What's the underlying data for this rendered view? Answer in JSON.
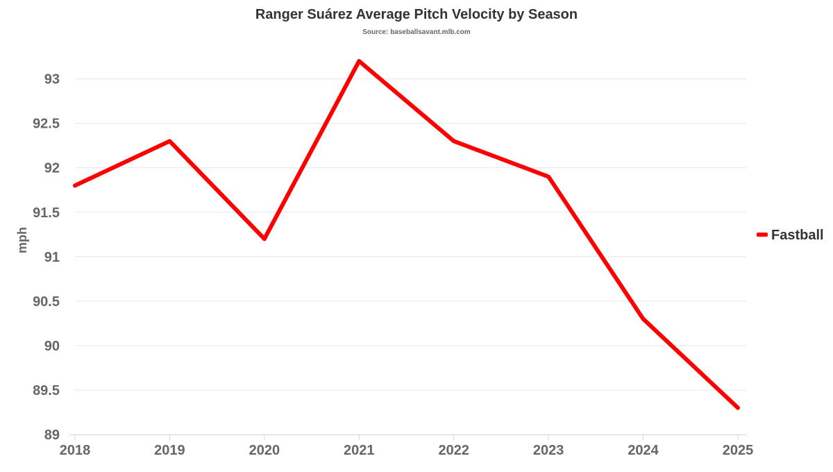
{
  "chart_data": {
    "type": "line",
    "title": "Ranger Suárez Average Pitch Velocity by Season",
    "subtitle": "Source: baseballsavant.mlb.com",
    "xlabel": "",
    "ylabel": "mph",
    "categories": [
      "2018",
      "2019",
      "2020",
      "2021",
      "2022",
      "2023",
      "2024",
      "2025"
    ],
    "series": [
      {
        "name": "Fastball",
        "color": "#ff0000",
        "values": [
          91.8,
          92.3,
          91.2,
          93.2,
          92.3,
          91.9,
          90.3,
          89.3
        ]
      }
    ],
    "ylim": [
      89,
      93.2
    ],
    "yticks": [
      89,
      89.5,
      90,
      90.5,
      91,
      91.5,
      92,
      92.5,
      93
    ],
    "grid": true,
    "legend_position": "right"
  }
}
